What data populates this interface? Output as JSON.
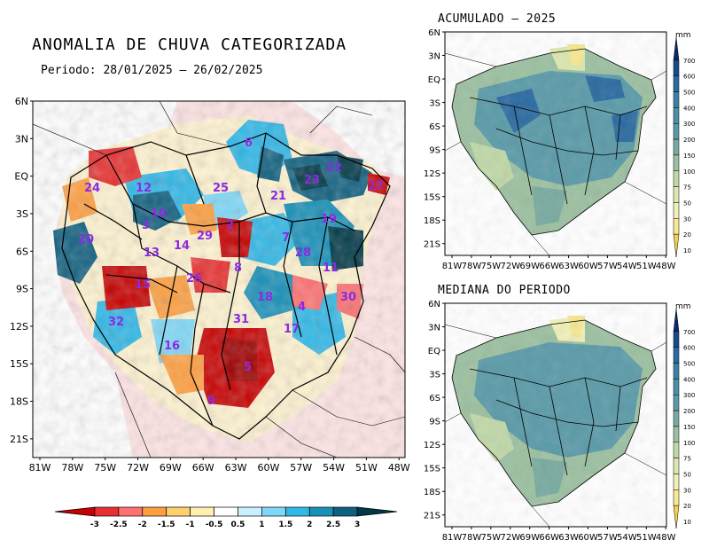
{
  "main_map": {
    "title": "ANOMALIA DE CHUVA CATEGORIZADA",
    "period": "Periodo: 28/01/2025 – 26/02/2025",
    "lat_ticks": [
      "6N",
      "3N",
      "EQ",
      "3S",
      "6S",
      "9S",
      "12S",
      "15S",
      "18S",
      "21S"
    ],
    "lon_ticks": [
      "81W",
      "78W",
      "75W",
      "72W",
      "69W",
      "66W",
      "63W",
      "60W",
      "57W",
      "54W",
      "51W",
      "48W"
    ],
    "basin_labels": [
      "6",
      "22",
      "24",
      "12",
      "25",
      "27",
      "21",
      "23",
      "10",
      "3",
      "20",
      "13",
      "14",
      "29",
      "2",
      "7",
      "19",
      "8",
      "28",
      "11",
      "15",
      "26",
      "18",
      "4",
      "30",
      "32",
      "31",
      "17",
      "16",
      "5",
      "9",
      "16"
    ],
    "colorbar": {
      "labels": [
        "-3",
        "-2.5",
        "-2",
        "-1.5",
        "-1",
        "-0.5",
        "0.5",
        "1",
        "1.5",
        "2",
        "2.5",
        "3"
      ],
      "colors": [
        "#c80000",
        "#e83030",
        "#ff7070",
        "#ffa040",
        "#ffd070",
        "#fff0b0",
        "#ffffff",
        "#c8f0ff",
        "#80d8f8",
        "#30b8e8",
        "#1890b8",
        "#106080",
        "#003848"
      ]
    }
  },
  "panels": [
    {
      "title": "ACUMULADO – 2025",
      "lat_ticks": [
        "6N",
        "3N",
        "EQ",
        "3S",
        "6S",
        "9S",
        "12S",
        "15S",
        "18S",
        "21S"
      ],
      "lon_ticks": [
        "81W",
        "78W",
        "75W",
        "72W",
        "69W",
        "66W",
        "63W",
        "60W",
        "57W",
        "54W",
        "51W",
        "48W"
      ]
    },
    {
      "title": "MEDIANA DO PERIODO",
      "lat_ticks": [
        "6N",
        "3N",
        "EQ",
        "3S",
        "6S",
        "9S",
        "12S",
        "15S",
        "18S",
        "21S"
      ],
      "lon_ticks": [
        "81W",
        "78W",
        "75W",
        "72W",
        "69W",
        "66W",
        "63W",
        "60W",
        "57W",
        "54W",
        "51W",
        "48W"
      ]
    }
  ],
  "precip_scale": {
    "unit": "mm",
    "labels": [
      "700",
      "600",
      "500",
      "400",
      "300",
      "200",
      "150",
      "100",
      "75",
      "50",
      "30",
      "20",
      "10"
    ],
    "colors": [
      "#0a2a6a",
      "#1a4a8a",
      "#2a6aa0",
      "#3a80a8",
      "#4a90a8",
      "#5a9aa8",
      "#78aaa0",
      "#9cc0a0",
      "#c0d8a8",
      "#dde8b0",
      "#f0f0b8",
      "#f8e890",
      "#f8d050"
    ]
  },
  "colors": {
    "dry_strong": "#c80000",
    "dry": "#ff8040",
    "wet": "#30b8e8",
    "wet_strong": "#003848",
    "label_purple": "#8a2be2"
  }
}
